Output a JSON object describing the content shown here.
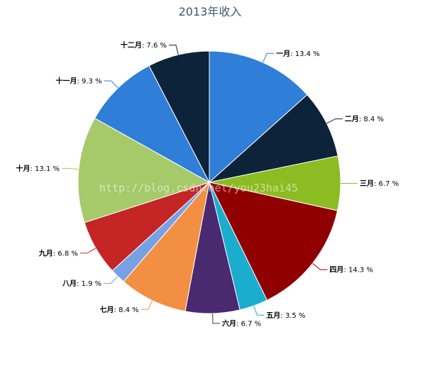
{
  "chart_data": {
    "type": "pie",
    "title": "2013年收入",
    "unit": "%",
    "slices": [
      {
        "name": "一月",
        "value": 13.4,
        "color": "#2f7ed8"
      },
      {
        "name": "二月",
        "value": 8.4,
        "color": "#0d233a"
      },
      {
        "name": "三月",
        "value": 6.7,
        "color": "#8bbc21"
      },
      {
        "name": "四月",
        "value": 14.3,
        "color": "#910000"
      },
      {
        "name": "五月",
        "value": 3.5,
        "color": "#1aadce"
      },
      {
        "name": "六月",
        "value": 6.7,
        "color": "#492970"
      },
      {
        "name": "七月",
        "value": 8.4,
        "color": "#f28f43"
      },
      {
        "name": "八月",
        "value": 1.9,
        "color": "#77a1e5"
      },
      {
        "name": "九月",
        "value": 6.8,
        "color": "#c42525"
      },
      {
        "name": "十月",
        "value": 13.1,
        "color": "#a6c96a"
      },
      {
        "name": "十一月",
        "value": 9.3,
        "color": "#2f7ed8"
      },
      {
        "name": "十二月",
        "value": 7.6,
        "color": "#0d233a"
      }
    ],
    "watermark": "http://blog.csdn.net/you23hai45"
  }
}
